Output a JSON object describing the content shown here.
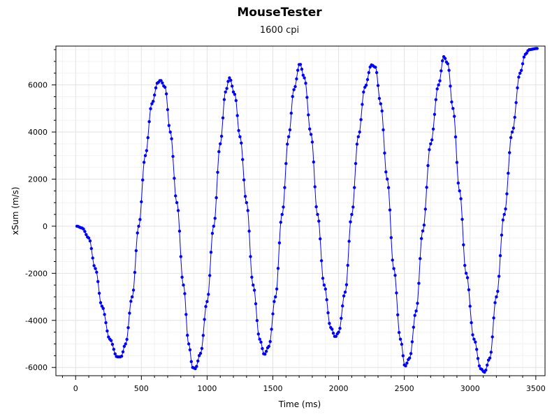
{
  "chart_data": {
    "type": "scatter",
    "title": "MouseTester",
    "subtitle": "1600 cpi",
    "xlabel": "Time (ms)",
    "ylabel": "xSum (m/s)",
    "xlim": [
      -150,
      3570
    ],
    "ylim": [
      -6350,
      7650
    ],
    "x_ticks": [
      0,
      500,
      1000,
      1500,
      2000,
      2500,
      3000,
      3500
    ],
    "x_tick_labels": [
      "0",
      "500",
      "1000",
      "1500",
      "2000",
      "2500",
      "3000",
      "3500"
    ],
    "y_ticks": [
      -6000,
      -4000,
      -2000,
      0,
      2000,
      4000,
      6000
    ],
    "y_tick_labels": [
      "-6000",
      "-4000",
      "-2000",
      "0",
      "2000",
      "4000",
      "6000"
    ],
    "grid": true,
    "series_color": "#0000ff",
    "line": {
      "connected": true,
      "markers": "circle",
      "anchors": [
        [
          10,
          0
        ],
        [
          50,
          -80
        ],
        [
          100,
          -500
        ],
        [
          150,
          -1800
        ],
        [
          200,
          -3400
        ],
        [
          260,
          -4800
        ],
        [
          315,
          -5550
        ],
        [
          345,
          -5550
        ],
        [
          380,
          -5000
        ],
        [
          430,
          -3000
        ],
        [
          480,
          0
        ],
        [
          530,
          3000
        ],
        [
          580,
          5200
        ],
        [
          625,
          6100
        ],
        [
          645,
          6200
        ],
        [
          680,
          5900
        ],
        [
          720,
          4000
        ],
        [
          770,
          1000
        ],
        [
          820,
          -2500
        ],
        [
          860,
          -5000
        ],
        [
          890,
          -6000
        ],
        [
          910,
          -6050
        ],
        [
          950,
          -5400
        ],
        [
          1000,
          -3200
        ],
        [
          1050,
          0
        ],
        [
          1100,
          3500
        ],
        [
          1140,
          5700
        ],
        [
          1170,
          6300
        ],
        [
          1210,
          5600
        ],
        [
          1250,
          3800
        ],
        [
          1300,
          1000
        ],
        [
          1350,
          -2500
        ],
        [
          1400,
          -4800
        ],
        [
          1435,
          -5450
        ],
        [
          1470,
          -5100
        ],
        [
          1520,
          -3000
        ],
        [
          1570,
          500
        ],
        [
          1620,
          3800
        ],
        [
          1660,
          5800
        ],
        [
          1705,
          6900
        ],
        [
          1740,
          6300
        ],
        [
          1790,
          3900
        ],
        [
          1840,
          500
        ],
        [
          1890,
          -2500
        ],
        [
          1940,
          -4300
        ],
        [
          1975,
          -4700
        ],
        [
          2000,
          -4500
        ],
        [
          2050,
          -2800
        ],
        [
          2100,
          500
        ],
        [
          2150,
          3800
        ],
        [
          2200,
          5900
        ],
        [
          2250,
          6850
        ],
        [
          2280,
          6750
        ],
        [
          2320,
          5200
        ],
        [
          2370,
          2000
        ],
        [
          2420,
          -1800
        ],
        [
          2470,
          -4800
        ],
        [
          2505,
          -5950
        ],
        [
          2540,
          -5600
        ],
        [
          2590,
          -3600
        ],
        [
          2640,
          -200
        ],
        [
          2700,
          3500
        ],
        [
          2760,
          6000
        ],
        [
          2800,
          7200
        ],
        [
          2830,
          6900
        ],
        [
          2870,
          5000
        ],
        [
          2920,
          1500
        ],
        [
          2970,
          -2000
        ],
        [
          3030,
          -4800
        ],
        [
          3080,
          -6050
        ],
        [
          3110,
          -6200
        ],
        [
          3150,
          -5600
        ],
        [
          3200,
          -3000
        ],
        [
          3260,
          500
        ],
        [
          3320,
          4000
        ],
        [
          3380,
          6500
        ],
        [
          3420,
          7300
        ],
        [
          3450,
          7500
        ],
        [
          3510,
          7550
        ]
      ]
    }
  }
}
